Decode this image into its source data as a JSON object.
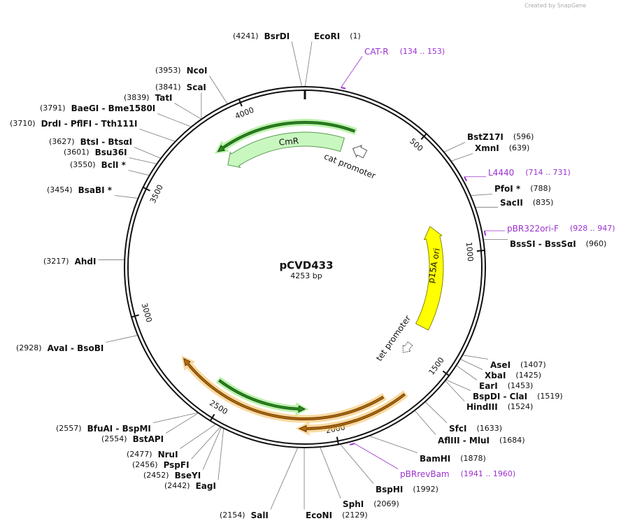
{
  "watermark": "Created by SnapGene",
  "map": {
    "name": "pCVD433",
    "size": "4253 bp"
  },
  "ticks": [
    500,
    1000,
    1500,
    2000,
    2500,
    3000,
    3500,
    4000
  ],
  "enzymes": [
    {
      "name": "EcoRI",
      "position": "(1)"
    },
    {
      "name": "BstZ17I",
      "position": "(596)"
    },
    {
      "name": "XmnI",
      "position": "(639)"
    },
    {
      "name": "PfoI *",
      "position": "(788)"
    },
    {
      "name": "SacII",
      "position": "(835)"
    },
    {
      "name": "BssSI - BssSαI",
      "position": "(960)"
    },
    {
      "name": "AseI",
      "position": "(1407)"
    },
    {
      "name": "XbaI",
      "position": "(1425)"
    },
    {
      "name": "EarI",
      "position": "(1453)"
    },
    {
      "name": "BspDI - ClaI",
      "position": "(1519)"
    },
    {
      "name": "HindIII",
      "position": "(1524)"
    },
    {
      "name": "SfcI",
      "position": "(1633)"
    },
    {
      "name": "AflIII - MluI",
      "position": "(1684)"
    },
    {
      "name": "BamHI",
      "position": "(1878)"
    },
    {
      "name": "BspHI",
      "position": "(1992)"
    },
    {
      "name": "SphI",
      "position": "(2069)"
    },
    {
      "name": "EcoNI",
      "position": "(2129)"
    },
    {
      "name": "SalI",
      "position": "(2154)"
    },
    {
      "name": "EagI",
      "position": "(2442)"
    },
    {
      "name": "BseYI",
      "position": "(2452)"
    },
    {
      "name": "PspFI",
      "position": "(2456)"
    },
    {
      "name": "NruI",
      "position": "(2477)"
    },
    {
      "name": "BstAPI",
      "position": "(2554)"
    },
    {
      "name": "BfuAI - BspMI",
      "position": "(2557)"
    },
    {
      "name": "AvaI - BsoBI",
      "position": "(2928)"
    },
    {
      "name": "AhdI",
      "position": "(3217)"
    },
    {
      "name": "BsaBI *",
      "position": "(3454)"
    },
    {
      "name": "BclI *",
      "position": "(3550)"
    },
    {
      "name": "Bsu36I",
      "position": "(3601)"
    },
    {
      "name": "BtsI - BtsαI",
      "position": "(3627)"
    },
    {
      "name": "DrdI - PflFI - Tth111I",
      "position": "(3710)"
    },
    {
      "name": "BaeGI - Bme1580I",
      "position": "(3791)"
    },
    {
      "name": "TatI",
      "position": "(3839)"
    },
    {
      "name": "ScaI",
      "position": "(3841)"
    },
    {
      "name": "NcoI",
      "position": "(3953)"
    },
    {
      "name": "BsrDI",
      "position": "(4241)"
    }
  ],
  "primers": [
    {
      "name": "CAT-R",
      "range": "(134 .. 153)"
    },
    {
      "name": "L4440",
      "range": "(714 .. 731)"
    },
    {
      "name": "pBR322ori-F",
      "range": "(928 .. 947)"
    },
    {
      "name": "pBRrevBam",
      "range": "(1941 .. 1960)"
    }
  ],
  "features": [
    {
      "label": "CmR"
    },
    {
      "label": "cat promoter"
    },
    {
      "label": "p15A ori"
    },
    {
      "label": "tet promoter"
    }
  ]
}
